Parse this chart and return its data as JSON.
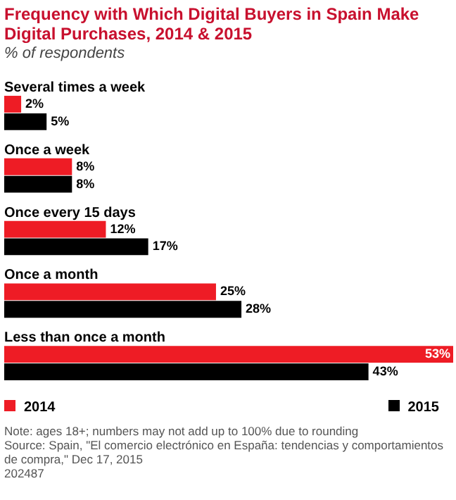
{
  "chart_data": {
    "type": "bar",
    "orientation": "horizontal",
    "title": "Frequency with Which Digital Buyers in Spain Make Digital Purchases, 2014 & 2015",
    "subtitle": "% of respondents",
    "categories": [
      "Several times a week",
      "Once a week",
      "Once every 15 days",
      "Once a month",
      "Less than once a month"
    ],
    "series": [
      {
        "name": "2014",
        "color": "#ee1c25",
        "values": [
          2,
          8,
          12,
          25,
          53
        ],
        "value_labels": [
          "2%",
          "8%",
          "12%",
          "25%",
          "53%"
        ]
      },
      {
        "name": "2015",
        "color": "#000000",
        "values": [
          5,
          8,
          17,
          28,
          43
        ],
        "value_labels": [
          "5%",
          "8%",
          "17%",
          "28%",
          "43%"
        ]
      }
    ],
    "legend": "bottom",
    "tick_labels": false,
    "annotations": [
      "Note: ages 18+; numbers may not add up to 100% due to rounding",
      "Source: Spain, \"El comercio electrónico en España: tendencias y comportamientos de compra,\" Dec 17, 2015",
      "202487"
    ]
  }
}
